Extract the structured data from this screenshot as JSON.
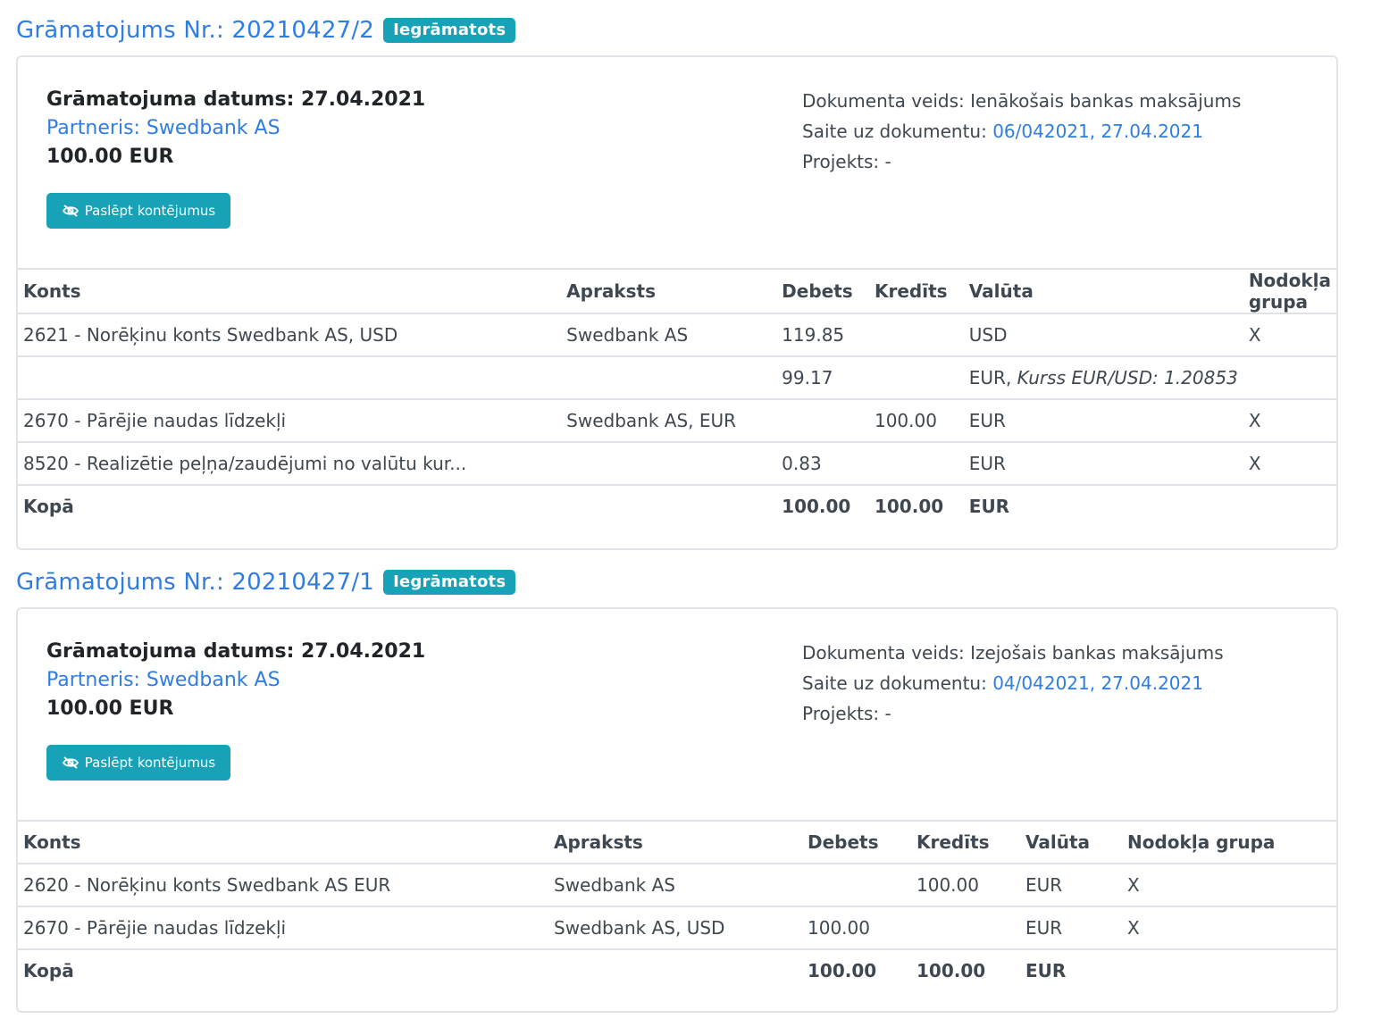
{
  "entries": [
    {
      "title": "Grāmatojums Nr.: 20210427/2",
      "status_badge": "Iegrāmatots",
      "date_line": "Grāmatojuma datums: 27.04.2021",
      "partner_line": "Partneris: Swedbank AS",
      "amount_line": "100.00 EUR",
      "toggle_button_label": "Paslēpt kontējumus",
      "doc_type_line": "Dokumenta veids: Ienākošais bankas maksājums",
      "doc_link_label": "Saite uz dokumentu: ",
      "doc_link_text": "06/042021, 27.04.2021",
      "project_line": "Projekts: -",
      "headers": [
        "Konts",
        "Apraksts",
        "Debets",
        "Kredīts",
        "Valūta",
        "Nodokļa grupa"
      ],
      "rows": [
        {
          "konts": "2621 - Norēķinu konts Swedbank AS, USD",
          "apraksts": "Swedbank AS",
          "debets": "119.85",
          "kredits": "",
          "valuta": "USD",
          "valuta_note": "",
          "nodoklis": "X"
        },
        {
          "konts": "",
          "apraksts": "",
          "debets": "99.17",
          "kredits": "",
          "valuta": "EUR, ",
          "valuta_note": "Kurss EUR/USD: 1.20853",
          "nodoklis": ""
        },
        {
          "konts": "2670 - Pārējie naudas līdzekļi",
          "apraksts": "Swedbank AS, EUR",
          "debets": "",
          "kredits": "100.00",
          "valuta": "EUR",
          "valuta_note": "",
          "nodoklis": "X"
        },
        {
          "konts": "8520 - Realizētie peļņa/zaudējumi no valūtu kur...",
          "apraksts": "",
          "debets": "0.83",
          "kredits": "",
          "valuta": "EUR",
          "valuta_note": "",
          "nodoklis": "X"
        }
      ],
      "total": {
        "label": "Kopā",
        "debets": "100.00",
        "kredits": "100.00",
        "valuta": "EUR"
      }
    },
    {
      "title": "Grāmatojums Nr.: 20210427/1",
      "status_badge": "Iegrāmatots",
      "date_line": "Grāmatojuma datums: 27.04.2021",
      "partner_line": "Partneris: Swedbank AS",
      "amount_line": "100.00 EUR",
      "toggle_button_label": "Paslēpt kontējumus",
      "doc_type_line": "Dokumenta veids: Izejošais bankas maksājums",
      "doc_link_label": "Saite uz dokumentu: ",
      "doc_link_text": "04/042021, 27.04.2021",
      "project_line": "Projekts: -",
      "headers": [
        "Konts",
        "Apraksts",
        "Debets",
        "Kredīts",
        "Valūta",
        "Nodokļa grupa"
      ],
      "rows": [
        {
          "konts": "2620 - Norēķinu konts Swedbank AS EUR",
          "apraksts": "Swedbank AS",
          "debets": "",
          "kredits": "100.00",
          "valuta": "EUR",
          "valuta_note": "",
          "nodoklis": "X"
        },
        {
          "konts": "2670 - Pārējie naudas līdzekļi",
          "apraksts": "Swedbank AS, USD",
          "debets": "100.00",
          "kredits": "",
          "valuta": "EUR",
          "valuta_note": "",
          "nodoklis": "X"
        }
      ],
      "total": {
        "label": "Kopā",
        "debets": "100.00",
        "kredits": "100.00",
        "valuta": "EUR"
      }
    }
  ],
  "icons": {
    "toggle": "eye-slash-icon"
  },
  "colors": {
    "link": "#2f7de1",
    "accent": "#17a2b8",
    "border": "#dee2e6"
  }
}
